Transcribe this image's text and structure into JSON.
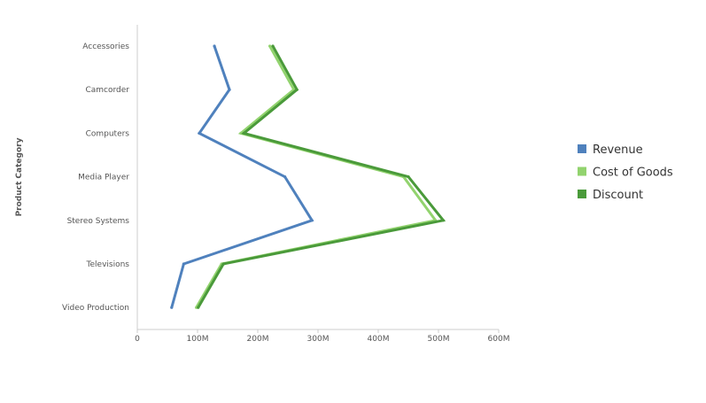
{
  "chart_data": {
    "type": "line",
    "orientation": "horizontal",
    "title": "",
    "xlabel": "",
    "ylabel": "Product Category",
    "categories": [
      "Accessories",
      "Camcorder",
      "Computers",
      "Media Player",
      "Stereo Systems",
      "Televisions",
      "Video Production"
    ],
    "x_ticks": [
      0,
      100,
      200,
      300,
      400,
      500,
      600
    ],
    "x_tick_labels": [
      "0",
      "100M",
      "200M",
      "300M",
      "400M",
      "500M",
      "600M"
    ],
    "xlim": [
      0,
      600
    ],
    "unit": "M",
    "grid": false,
    "legend_position": "right",
    "series": [
      {
        "name": "Revenue",
        "color": "#4f81bd",
        "values": [
          128,
          153,
          103,
          245,
          290,
          77,
          57
        ]
      },
      {
        "name": "Cost of Goods",
        "color": "#92d36e",
        "values": [
          220,
          260,
          172,
          442,
          495,
          140,
          98
        ]
      },
      {
        "name": "Discount",
        "color": "#4a9a3a",
        "values": [
          225,
          265,
          177,
          450,
          508,
          143,
          101
        ]
      }
    ]
  }
}
